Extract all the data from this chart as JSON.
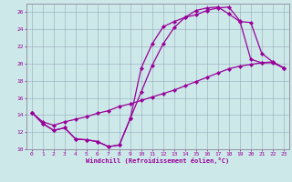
{
  "xlabel": "Windchill (Refroidissement éolien,°C)",
  "xlim": [
    -0.5,
    23.5
  ],
  "ylim": [
    10,
    27
  ],
  "xticks": [
    0,
    1,
    2,
    3,
    4,
    5,
    6,
    7,
    8,
    9,
    10,
    11,
    12,
    13,
    14,
    15,
    16,
    17,
    18,
    19,
    20,
    21,
    22,
    23
  ],
  "yticks": [
    10,
    12,
    14,
    16,
    18,
    20,
    22,
    24,
    26
  ],
  "bg_color": "#cce8e8",
  "line_color": "#990099",
  "grid_color": "#99aabb",
  "line1_x": [
    0,
    1,
    2,
    3,
    4,
    5,
    6,
    7,
    8,
    9,
    10,
    11,
    12,
    13,
    14,
    15,
    16,
    17,
    18,
    19,
    20,
    21,
    22,
    23
  ],
  "line1_y": [
    14.3,
    13.0,
    12.2,
    12.5,
    11.2,
    11.1,
    10.9,
    10.3,
    10.5,
    13.6,
    19.5,
    22.3,
    24.3,
    24.9,
    25.4,
    25.7,
    26.2,
    26.5,
    26.6,
    25.0,
    20.5,
    20.1,
    20.2,
    19.5
  ],
  "line2_x": [
    0,
    1,
    2,
    3,
    4,
    5,
    6,
    7,
    8,
    9,
    10,
    11,
    12,
    13,
    14,
    15,
    16,
    17,
    18,
    19,
    20,
    21,
    22,
    23
  ],
  "line2_y": [
    14.3,
    13.0,
    12.2,
    12.5,
    11.2,
    11.1,
    10.9,
    10.3,
    10.5,
    13.6,
    16.7,
    19.8,
    22.3,
    24.2,
    25.4,
    26.2,
    26.5,
    26.6,
    25.8,
    24.9,
    24.8,
    21.2,
    20.2,
    19.5
  ],
  "line3_x": [
    0,
    1,
    2,
    3,
    4,
    5,
    6,
    7,
    8,
    9,
    10,
    11,
    12,
    13,
    14,
    15,
    16,
    17,
    18,
    19,
    20,
    21,
    22,
    23
  ],
  "line3_y": [
    14.3,
    13.2,
    12.8,
    13.2,
    13.5,
    13.8,
    14.2,
    14.5,
    15.0,
    15.3,
    15.7,
    16.1,
    16.5,
    16.9,
    17.4,
    17.9,
    18.4,
    18.9,
    19.4,
    19.7,
    19.9,
    20.1,
    20.1,
    19.5
  ],
  "marker": "D",
  "markersize": 2.2,
  "linewidth": 0.9
}
